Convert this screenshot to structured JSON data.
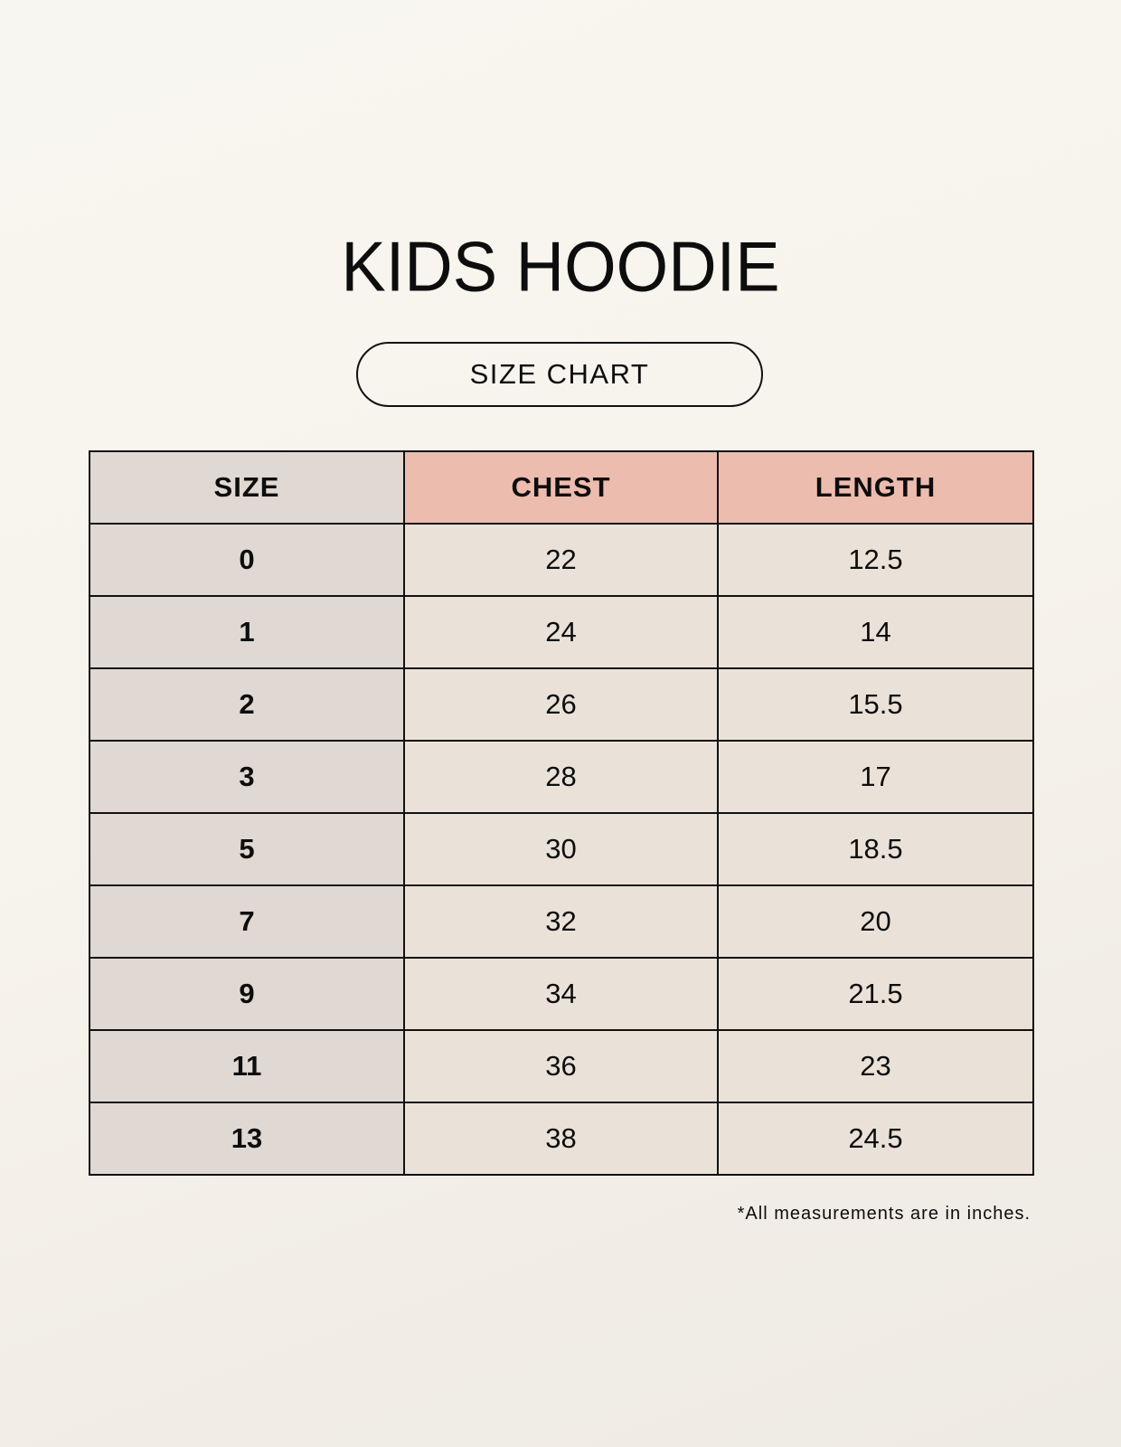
{
  "title": "KIDS HOODIE",
  "subtitle": "SIZE CHART",
  "colors": {
    "size_column": "#e0d8d2",
    "header_accent": "#ecbcaf",
    "cell": "#eae2d8"
  },
  "table": {
    "headers": [
      "SIZE",
      "CHEST",
      "LENGTH"
    ],
    "rows": [
      [
        "0",
        "22",
        "12.5"
      ],
      [
        "1",
        "24",
        "14"
      ],
      [
        "2",
        "26",
        "15.5"
      ],
      [
        "3",
        "28",
        "17"
      ],
      [
        "5",
        "30",
        "18.5"
      ],
      [
        "7",
        "32",
        "20"
      ],
      [
        "9",
        "34",
        "21.5"
      ],
      [
        "11",
        "36",
        "23"
      ],
      [
        "13",
        "38",
        "24.5"
      ]
    ]
  },
  "footnote": "*All measurements are in inches."
}
